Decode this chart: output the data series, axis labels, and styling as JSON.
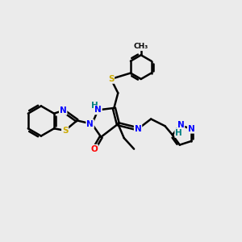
{
  "bg_color": "#ebebeb",
  "line_color": "#000000",
  "bond_width": 1.8,
  "atom_colors": {
    "N": "#0000ff",
    "O": "#ff0000",
    "S": "#ccaa00",
    "H": "#008080",
    "C": "#000000"
  },
  "font_size": 7.5,
  "figsize": [
    3.0,
    3.0
  ],
  "dpi": 100
}
